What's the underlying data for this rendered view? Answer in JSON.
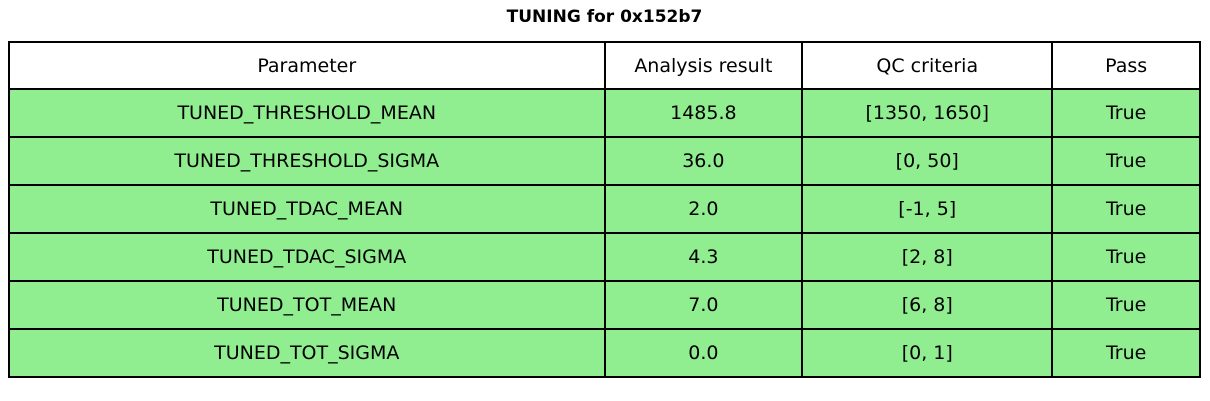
{
  "figure": {
    "title": "TUNING for 0x152b7"
  },
  "colors": {
    "pass_green": "#90ee90",
    "header_bg": "#ffffff",
    "background": "#ffffff",
    "border": "#000000",
    "text": "#000000"
  },
  "chart_data": {
    "type": "table",
    "title": "TUNING for 0x152b7",
    "columns": [
      "Parameter",
      "Analysis result",
      "QC criteria",
      "Pass"
    ],
    "rows": [
      [
        "TUNED_THRESHOLD_MEAN",
        "1485.8",
        "[1350, 1650]",
        "True"
      ],
      [
        "TUNED_THRESHOLD_SIGMA",
        "36.0",
        "[0, 50]",
        "True"
      ],
      [
        "TUNED_TDAC_MEAN",
        "2.0",
        "[-1, 5]",
        "True"
      ],
      [
        "TUNED_TDAC_SIGMA",
        "4.3",
        "[2, 8]",
        "True"
      ],
      [
        "TUNED_TOT_MEAN",
        "7.0",
        "[6, 8]",
        "True"
      ],
      [
        "TUNED_TOT_SIGMA",
        "0.0",
        "[0, 1]",
        "True"
      ]
    ],
    "all_rows_pass": true,
    "layout": {
      "header_background": "white",
      "pass_row_background": "lightgreen",
      "grid": "all-cell-borders"
    }
  }
}
